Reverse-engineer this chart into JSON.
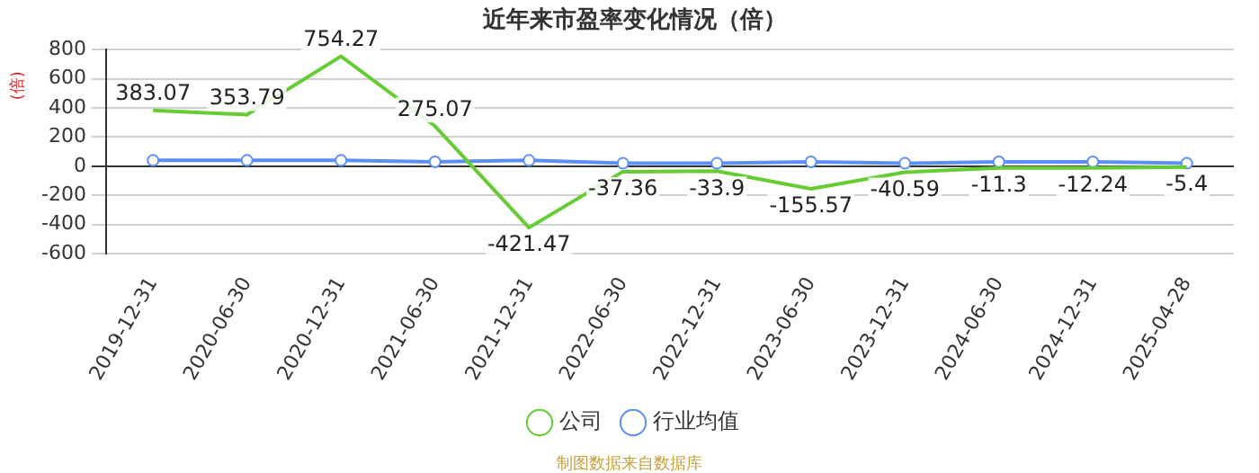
{
  "chart_data": {
    "type": "line",
    "title": "近年来市盈率变化情况（倍）",
    "ylabel": "(倍)",
    "categories": [
      "2019-12-31",
      "2020-06-30",
      "2020-12-31",
      "2021-06-30",
      "2021-12-31",
      "2022-06-30",
      "2022-12-31",
      "2023-06-30",
      "2023-12-31",
      "2024-06-30",
      "2024-12-31",
      "2025-04-28"
    ],
    "series": [
      {
        "name": "公司",
        "color": "#66cc33",
        "marker": "none",
        "values": [
          383.07,
          353.79,
          754.27,
          275.07,
          -421.47,
          -37.36,
          -33.9,
          -155.57,
          -40.59,
          -11.3,
          -12.24,
          -5.4
        ],
        "value_labels": [
          "383.07",
          "353.79",
          "754.27",
          "275.07",
          "-421.47",
          "-37.36",
          "-33.9",
          "-155.57",
          "-40.59",
          "-11.3",
          "-12.24",
          "-5.4"
        ]
      },
      {
        "name": "行业均值",
        "color": "#5b8ff9",
        "marker": "circle",
        "values": [
          40,
          40,
          40,
          30,
          40,
          20,
          20,
          30,
          20,
          30,
          30,
          20
        ]
      }
    ],
    "ylim": [
      -600,
      800
    ],
    "yticks": [
      -600,
      -400,
      -200,
      0,
      200,
      400,
      600,
      800
    ],
    "grid": "y",
    "legend": "bottom",
    "line_style": "solid",
    "annotations": [
      "制图数据来自数据库"
    ]
  }
}
